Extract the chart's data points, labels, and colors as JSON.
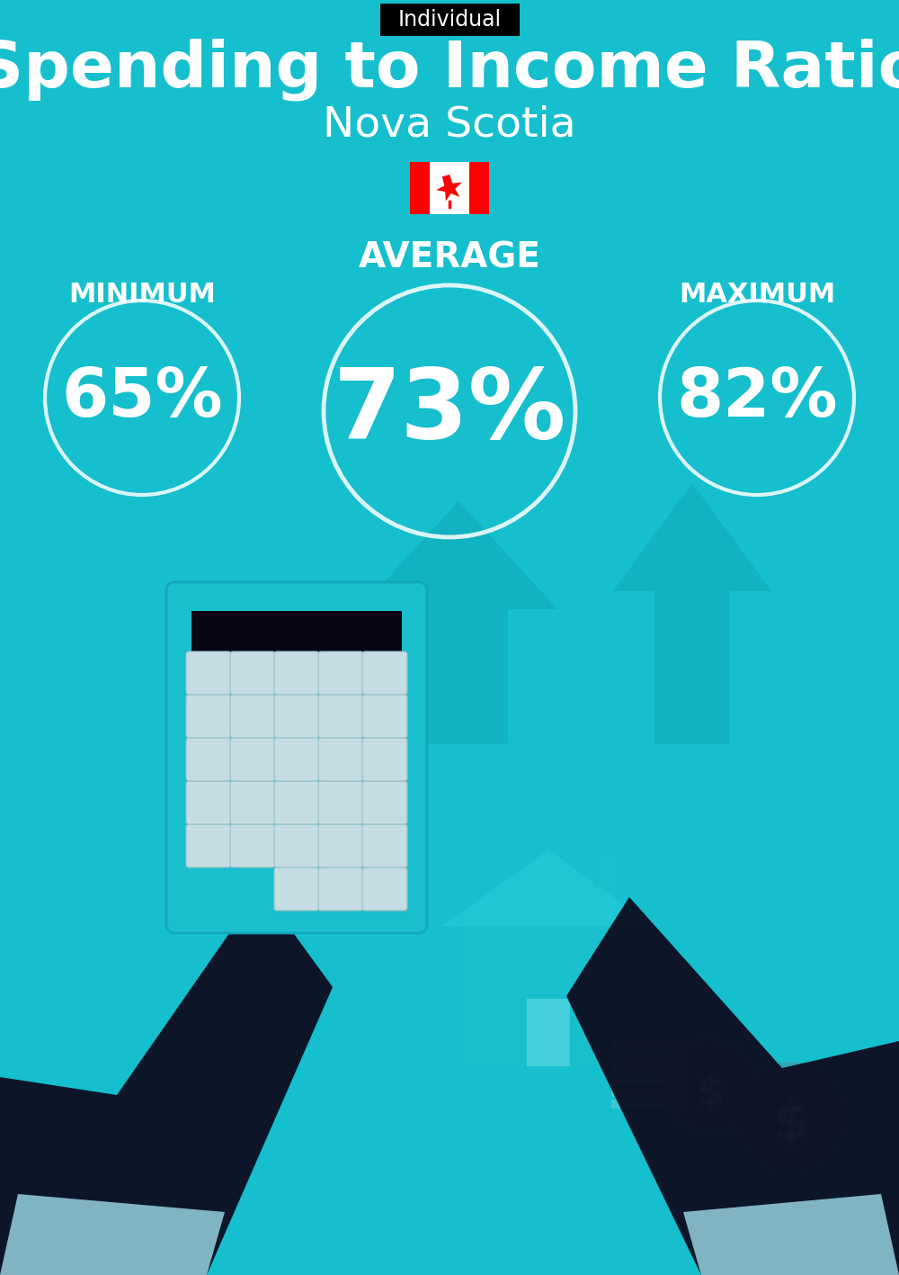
{
  "title": "Spending to Income Ratio",
  "subtitle": "Nova Scotia",
  "tag_label": "Individual",
  "bg_color": "#15BFCD",
  "text_color": "#FFFFFF",
  "tag_bg": "#000000",
  "min_label": "MINIMUM",
  "avg_label": "AVERAGE",
  "max_label": "MAXIMUM",
  "min_value": "65%",
  "avg_value": "73%",
  "max_value": "82%",
  "title_fontsize": 52,
  "subtitle_fontsize": 34,
  "label_fontsize": 22,
  "value_fontsize_small": 54,
  "value_fontsize_large": 78,
  "tag_fontsize": 17,
  "avg_label_fontsize": 28,
  "fig_width": 10.0,
  "fig_height": 14.17
}
